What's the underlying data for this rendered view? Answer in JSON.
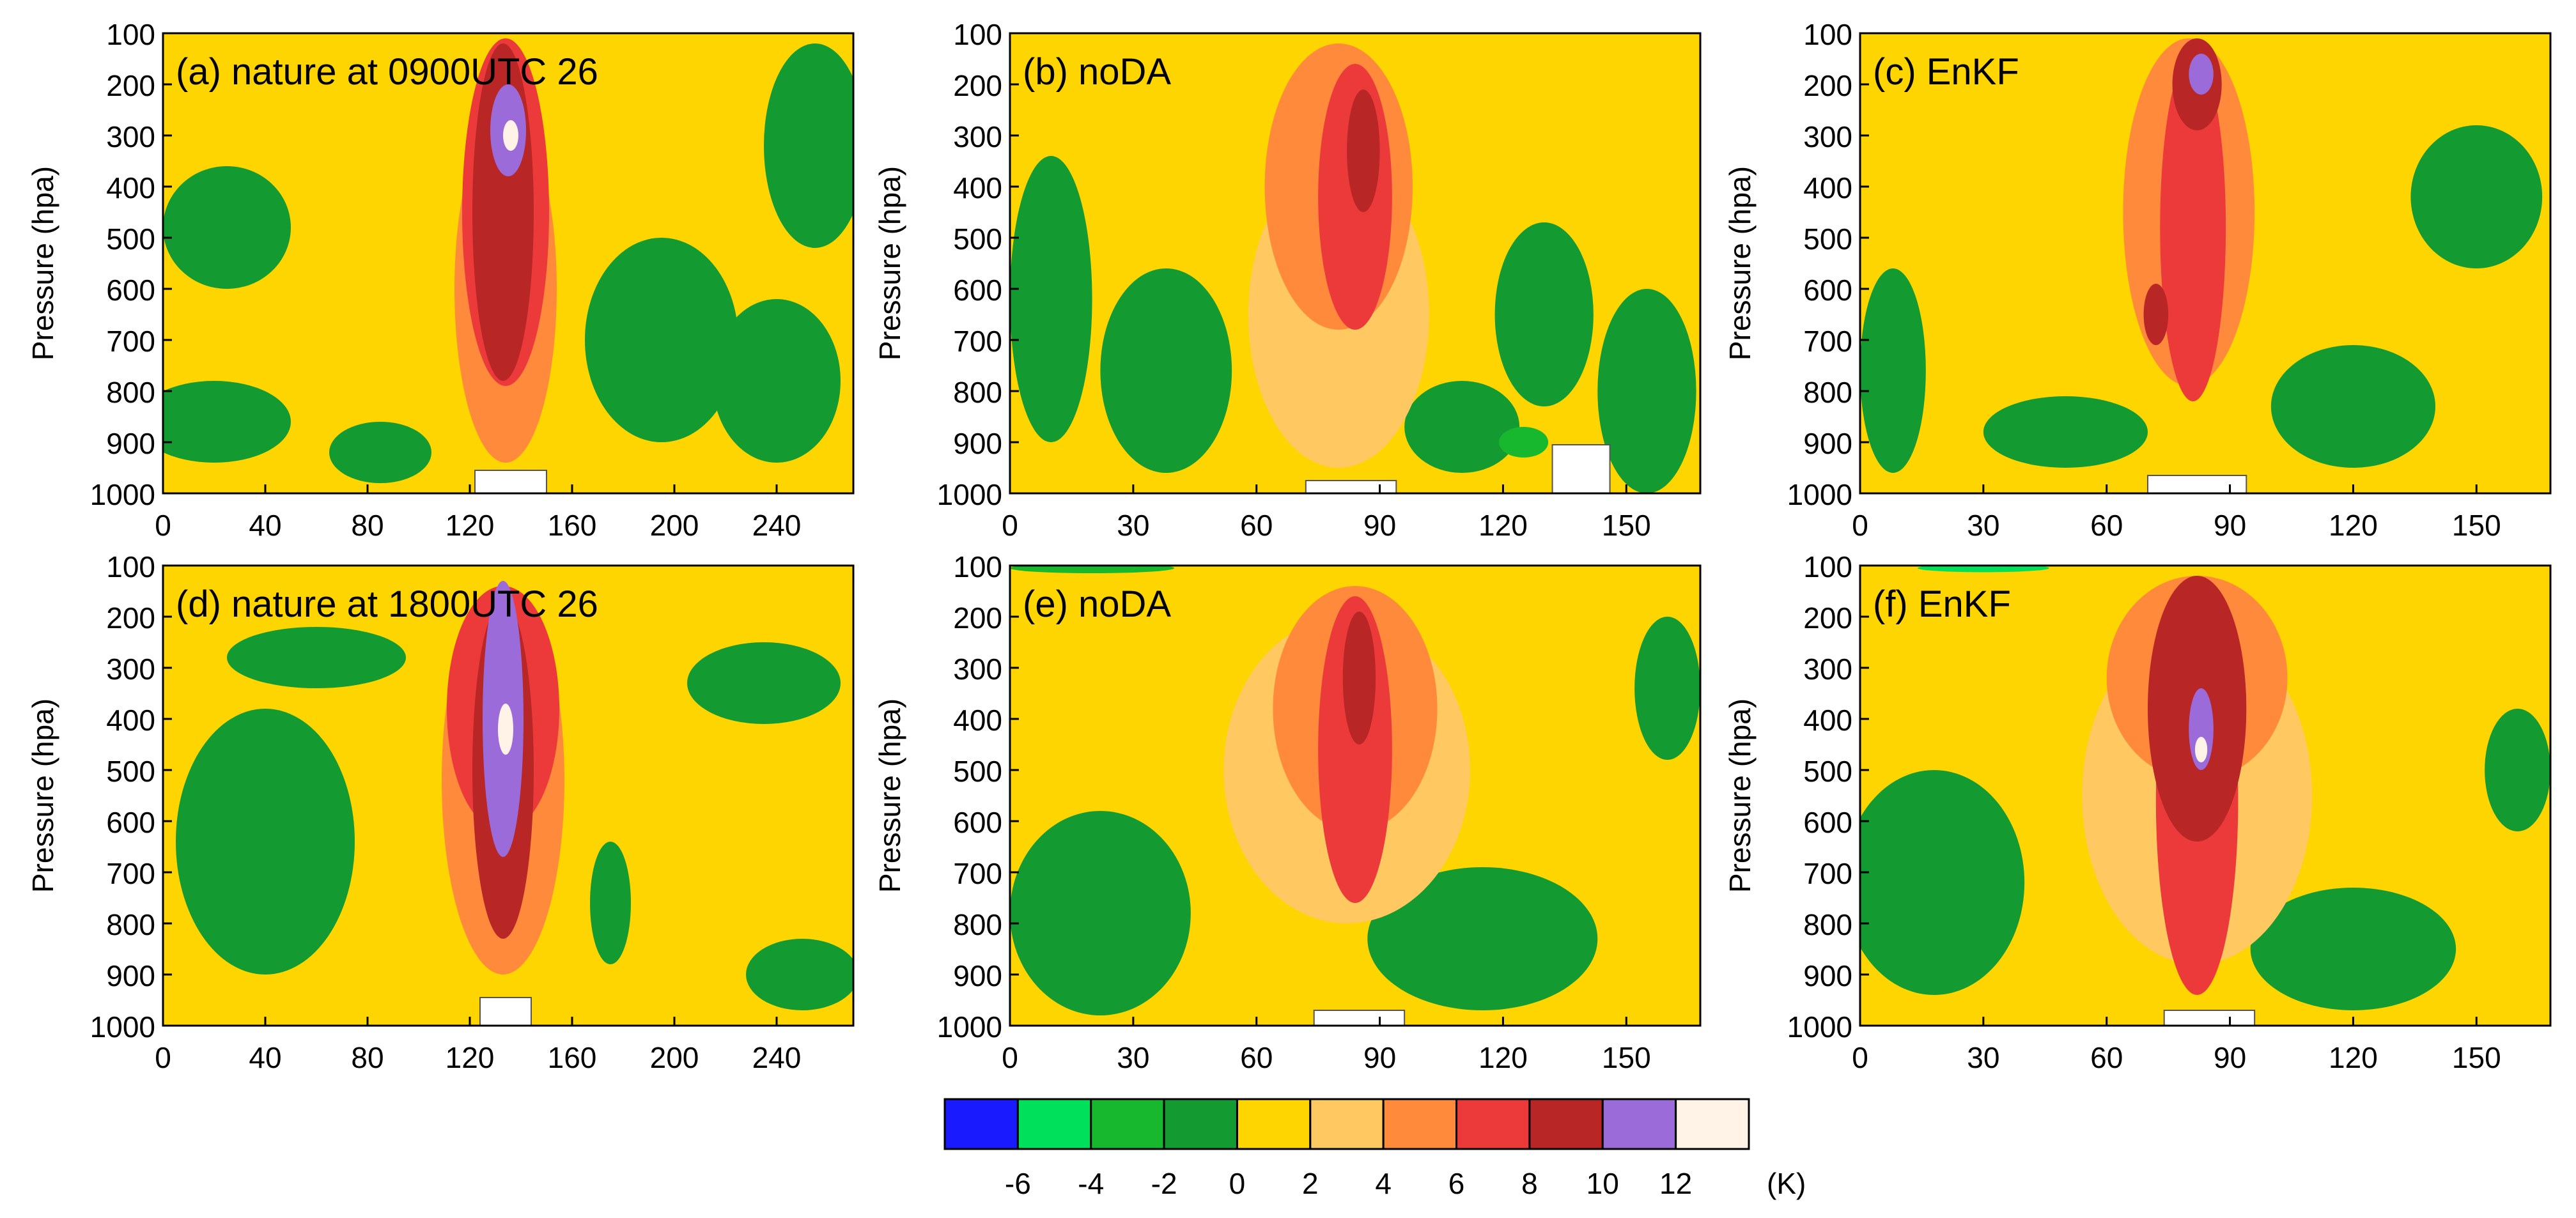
{
  "chart_data": [
    {
      "type": "heatmap",
      "title": "(a) nature at 0900UTC 26",
      "ylabel": "Pressure (hpa)",
      "xlabel": "",
      "xlim": [
        0,
        270
      ],
      "ylim": [
        1000,
        100
      ],
      "x_ticks": [
        "0",
        "40",
        "80",
        "120",
        "160",
        "200",
        "240"
      ],
      "y_ticks": [
        "100",
        "200",
        "300",
        "400",
        "500",
        "600",
        "700",
        "800",
        "900",
        "1000"
      ],
      "features": [
        {
          "level": 10,
          "x": 135,
          "p": 290,
          "rx": 7,
          "rp": 90
        },
        {
          "level": 8,
          "x": 133,
          "p": 450,
          "rx": 12,
          "rp": 330
        },
        {
          "level": 6,
          "x": 134,
          "p": 450,
          "rx": 17,
          "rp": 340
        },
        {
          "level": 4,
          "x": 134,
          "p": 600,
          "rx": 20,
          "rp": 340
        },
        {
          "level": 12,
          "x": 136,
          "p": 300,
          "rx": 3,
          "rp": 30
        },
        {
          "level": -2,
          "x": 25,
          "p": 480,
          "rx": 25,
          "rp": 120
        },
        {
          "level": -2,
          "x": 20,
          "p": 860,
          "rx": 30,
          "rp": 80
        },
        {
          "level": -2,
          "x": 195,
          "p": 700,
          "rx": 30,
          "rp": 200
        },
        {
          "level": -2,
          "x": 255,
          "p": 320,
          "rx": 20,
          "rp": 200
        },
        {
          "level": -2,
          "x": 240,
          "p": 780,
          "rx": 25,
          "rp": 160
        },
        {
          "level": -2,
          "x": 85,
          "p": 920,
          "rx": 20,
          "rp": 60
        }
      ],
      "terrain": [
        {
          "x": 122,
          "w": 28,
          "p": 955
        }
      ]
    },
    {
      "type": "heatmap",
      "title": "(b) noDA",
      "ylabel": "Pressure (hpa)",
      "xlabel": "",
      "xlim": [
        0,
        168
      ],
      "ylim": [
        1000,
        100
      ],
      "x_ticks": [
        "0",
        "30",
        "60",
        "90",
        "120",
        "150"
      ],
      "y_ticks": [
        "100",
        "200",
        "300",
        "400",
        "500",
        "600",
        "700",
        "800",
        "900",
        "1000"
      ],
      "features": [
        {
          "level": 6,
          "x": 84,
          "p": 420,
          "rx": 9,
          "rp": 260
        },
        {
          "level": 4,
          "x": 80,
          "p": 400,
          "rx": 18,
          "rp": 280
        },
        {
          "level": 2,
          "x": 80,
          "p": 650,
          "rx": 22,
          "rp": 300
        },
        {
          "level": 8,
          "x": 86,
          "p": 330,
          "rx": 4,
          "rp": 120
        },
        {
          "level": -2,
          "x": 10,
          "p": 620,
          "rx": 10,
          "rp": 280
        },
        {
          "level": -2,
          "x": 38,
          "p": 760,
          "rx": 16,
          "rp": 200
        },
        {
          "level": -2,
          "x": 130,
          "p": 650,
          "rx": 12,
          "rp": 180
        },
        {
          "level": -2,
          "x": 155,
          "p": 800,
          "rx": 12,
          "rp": 200
        },
        {
          "level": -2,
          "x": 110,
          "p": 870,
          "rx": 14,
          "rp": 90
        },
        {
          "level": -4,
          "x": 125,
          "p": 900,
          "rx": 6,
          "rp": 30
        }
      ],
      "terrain": [
        {
          "x": 132,
          "w": 14,
          "p": 905
        },
        {
          "x": 72,
          "w": 22,
          "p": 975
        }
      ]
    },
    {
      "type": "heatmap",
      "title": "(c) EnKF",
      "ylabel": "Pressure (hpa)",
      "xlabel": "",
      "xlim": [
        0,
        168
      ],
      "ylim": [
        1000,
        100
      ],
      "x_ticks": [
        "0",
        "30",
        "60",
        "90",
        "120",
        "150"
      ],
      "y_ticks": [
        "100",
        "200",
        "300",
        "400",
        "500",
        "600",
        "700",
        "800",
        "900",
        "1000"
      ],
      "features": [
        {
          "level": 6,
          "x": 81,
          "p": 480,
          "rx": 8,
          "rp": 340
        },
        {
          "level": 4,
          "x": 80,
          "p": 450,
          "rx": 16,
          "rp": 340
        },
        {
          "level": 8,
          "x": 82,
          "p": 200,
          "rx": 6,
          "rp": 90
        },
        {
          "level": 10,
          "x": 83,
          "p": 180,
          "rx": 3,
          "rp": 40
        },
        {
          "level": 8,
          "x": 72,
          "p": 650,
          "rx": 3,
          "rp": 60
        },
        {
          "level": -2,
          "x": 150,
          "p": 420,
          "rx": 16,
          "rp": 140
        },
        {
          "level": -2,
          "x": 8,
          "p": 760,
          "rx": 8,
          "rp": 200
        },
        {
          "level": -2,
          "x": 120,
          "p": 830,
          "rx": 20,
          "rp": 120
        },
        {
          "level": -2,
          "x": 50,
          "p": 880,
          "rx": 20,
          "rp": 70
        }
      ],
      "terrain": [
        {
          "x": 70,
          "w": 24,
          "p": 965
        }
      ]
    },
    {
      "type": "heatmap",
      "title": "(d) nature at 1800UTC 26",
      "ylabel": "Pressure (hpa)",
      "xlabel": "",
      "xlim": [
        0,
        270
      ],
      "ylim": [
        1000,
        100
      ],
      "x_ticks": [
        "0",
        "40",
        "80",
        "120",
        "160",
        "200",
        "240"
      ],
      "y_ticks": [
        "100",
        "200",
        "300",
        "400",
        "500",
        "600",
        "700",
        "800",
        "900",
        "1000"
      ],
      "features": [
        {
          "level": 10,
          "x": 133,
          "p": 400,
          "rx": 8,
          "rp": 270
        },
        {
          "level": 8,
          "x": 133,
          "p": 500,
          "rx": 12,
          "rp": 330
        },
        {
          "level": 6,
          "x": 133,
          "p": 380,
          "rx": 22,
          "rp": 240
        },
        {
          "level": 4,
          "x": 133,
          "p": 520,
          "rx": 24,
          "rp": 380
        },
        {
          "level": 12,
          "x": 134,
          "p": 420,
          "rx": 3,
          "rp": 50
        },
        {
          "level": -2,
          "x": 40,
          "p": 640,
          "rx": 35,
          "rp": 260
        },
        {
          "level": -2,
          "x": 60,
          "p": 280,
          "rx": 35,
          "rp": 60
        },
        {
          "level": -2,
          "x": 235,
          "p": 330,
          "rx": 30,
          "rp": 80
        },
        {
          "level": -2,
          "x": 250,
          "p": 900,
          "rx": 22,
          "rp": 70
        },
        {
          "level": -2,
          "x": 175,
          "p": 760,
          "rx": 8,
          "rp": 120
        }
      ],
      "terrain": [
        {
          "x": 124,
          "w": 20,
          "p": 945
        }
      ]
    },
    {
      "type": "heatmap",
      "title": "(e) noDA",
      "ylabel": "Pressure (hpa)",
      "xlabel": "",
      "xlim": [
        0,
        168
      ],
      "ylim": [
        1000,
        100
      ],
      "x_ticks": [
        "0",
        "30",
        "60",
        "90",
        "120",
        "150"
      ],
      "y_ticks": [
        "100",
        "200",
        "300",
        "400",
        "500",
        "600",
        "700",
        "800",
        "900",
        "1000"
      ],
      "features": [
        {
          "level": 6,
          "x": 84,
          "p": 460,
          "rx": 9,
          "rp": 300
        },
        {
          "level": 4,
          "x": 84,
          "p": 380,
          "rx": 20,
          "rp": 240
        },
        {
          "level": 2,
          "x": 82,
          "p": 500,
          "rx": 30,
          "rp": 300
        },
        {
          "level": 8,
          "x": 85,
          "p": 320,
          "rx": 4,
          "rp": 130
        },
        {
          "level": -2,
          "x": 22,
          "p": 780,
          "rx": 22,
          "rp": 200
        },
        {
          "level": -2,
          "x": 115,
          "p": 830,
          "rx": 28,
          "rp": 140
        },
        {
          "level": -2,
          "x": 160,
          "p": 340,
          "rx": 8,
          "rp": 140
        },
        {
          "level": -4,
          "x": 20,
          "p": 105,
          "rx": 20,
          "rp": 10
        }
      ],
      "terrain": [
        {
          "x": 74,
          "w": 22,
          "p": 970
        }
      ]
    },
    {
      "type": "heatmap",
      "title": "(f) EnKF",
      "ylabel": "Pressure (hpa)",
      "xlabel": "",
      "xlim": [
        0,
        168
      ],
      "ylim": [
        1000,
        100
      ],
      "x_ticks": [
        "0",
        "30",
        "60",
        "90",
        "120",
        "150"
      ],
      "y_ticks": [
        "100",
        "200",
        "300",
        "400",
        "500",
        "600",
        "700",
        "800",
        "900",
        "1000"
      ],
      "features": [
        {
          "level": 8,
          "x": 82,
          "p": 380,
          "rx": 12,
          "rp": 260
        },
        {
          "level": 6,
          "x": 82,
          "p": 560,
          "rx": 10,
          "rp": 380
        },
        {
          "level": 4,
          "x": 82,
          "p": 320,
          "rx": 22,
          "rp": 200
        },
        {
          "level": 2,
          "x": 82,
          "p": 550,
          "rx": 28,
          "rp": 330
        },
        {
          "level": 10,
          "x": 83,
          "p": 420,
          "rx": 3,
          "rp": 80
        },
        {
          "level": 12,
          "x": 83,
          "p": 460,
          "rx": 1.5,
          "rp": 25
        },
        {
          "level": -2,
          "x": 18,
          "p": 720,
          "rx": 22,
          "rp": 220
        },
        {
          "level": -2,
          "x": 160,
          "p": 500,
          "rx": 8,
          "rp": 120
        },
        {
          "level": -2,
          "x": 120,
          "p": 850,
          "rx": 25,
          "rp": 120
        },
        {
          "level": -6,
          "x": 30,
          "p": 105,
          "rx": 16,
          "rp": 8
        }
      ],
      "terrain": [
        {
          "x": 74,
          "w": 22,
          "p": 970
        }
      ]
    }
  ],
  "colorbar": {
    "levels": [
      "-6",
      "-4",
      "-2",
      "0",
      "2",
      "4",
      "6",
      "8",
      "10",
      "12"
    ],
    "unit": "(K)",
    "colors": [
      "#1a1aff",
      "#00e05a",
      "#17b82d",
      "#139b31",
      "#ffd500",
      "#ffc860",
      "#ff8a3c",
      "#ec3a3a",
      "#b82626",
      "#9b6bd9",
      "#fff2e6"
    ]
  },
  "colors": {
    "background_level": "#ffd500",
    "terrain": "#ffffff"
  }
}
